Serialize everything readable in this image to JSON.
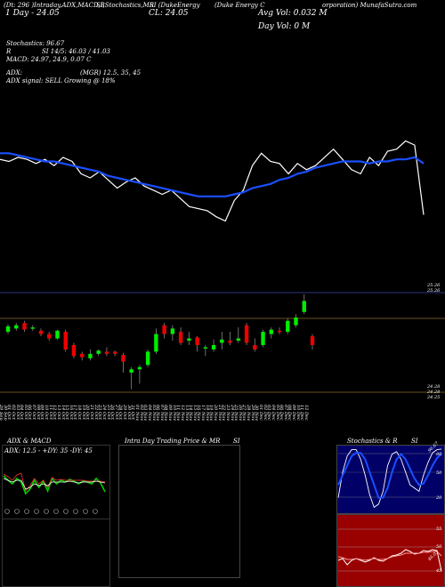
{
  "header": {
    "code": "(Dt: 296 )",
    "line1": "1 Day - 24.05",
    "segs": [
      "Intraday,ADX,MACD,B",
      "SI,Stochastics,MR",
      "SI (DukeEnergy",
      "(Duke   Energy   C",
      "orporation) MunafaSutra.com"
    ],
    "cl": "CL: 24.05",
    "avg_vol": "Avg Vol: 0.032  M",
    "day_vol": "Day Vol: 0   M"
  },
  "indicators": {
    "stochastics": "Stochastics: 96.67",
    "r": "R",
    "si": "SI 14/5: 46.03 / 41.03",
    "macd": "MACD: 24.97, 24.9, 0.07 C",
    "adx": "ADX:",
    "mgr": "(MGR) 12.5,  35,  45",
    "signal": "ADX  signal: SELL Growing @ 18%"
  },
  "chart_data": [
    {
      "type": "line",
      "name": "price-ma",
      "series": [
        {
          "color": "#ffffff",
          "values": [
            24.55,
            24.54,
            24.56,
            24.55,
            24.53,
            24.55,
            24.52,
            24.56,
            24.54,
            24.48,
            24.46,
            24.49,
            24.45,
            24.41,
            24.44,
            24.46,
            24.42,
            24.4,
            24.38,
            24.4,
            24.36,
            24.32,
            24.31,
            24.3,
            24.27,
            24.25,
            24.35,
            24.4,
            24.52,
            24.58,
            24.54,
            24.53,
            24.48,
            24.53,
            24.5,
            24.52,
            24.56,
            24.6,
            24.55,
            24.5,
            24.48,
            24.56,
            24.52,
            24.59,
            24.6,
            24.64,
            24.62,
            24.28
          ]
        },
        {
          "color": "#1a4fff",
          "values": [
            24.58,
            24.58,
            24.57,
            24.56,
            24.55,
            24.54,
            24.54,
            24.53,
            24.52,
            24.51,
            24.5,
            24.49,
            24.47,
            24.46,
            24.45,
            24.44,
            24.43,
            24.42,
            24.41,
            24.4,
            24.39,
            24.38,
            24.37,
            24.37,
            24.37,
            24.37,
            24.38,
            24.39,
            24.41,
            24.42,
            24.43,
            24.45,
            24.46,
            24.48,
            24.49,
            24.51,
            24.52,
            24.53,
            24.54,
            24.54,
            24.54,
            24.53,
            24.54,
            24.54,
            24.55,
            24.55,
            24.56,
            24.53
          ]
        }
      ]
    },
    {
      "type": "candlestick",
      "name": "price-candles",
      "price_labels": [
        "25.26",
        "25.26",
        "24.28",
        "24.28",
        "24.25"
      ],
      "dates": [
        "29 Sep",
        "30 Sep",
        "01 Oct",
        "02 Oct",
        "03 Oct",
        "04 Oct",
        "05 Oct",
        "06 Oct",
        "07 Oct",
        "08 Oct",
        "09 Oct",
        "10 Oct",
        "11 Oct",
        "12 Oct",
        "13 Oct",
        "14 Oct",
        "15 Oct",
        "16 Oct",
        "17 Oct",
        "18 Oct",
        "19 Oct",
        "20 Oct",
        "21 Oct",
        "22 Oct",
        "23 Oct",
        "24 Oct",
        "25 Oct",
        "26 Oct",
        "27 Oct",
        "28 Oct",
        "29 Oct",
        "30 Oct",
        "31 Oct",
        "01 Nov",
        "02 Nov",
        "03 Nov",
        "04 Nov",
        "05 Nov",
        "06 Nov",
        "07 Nov",
        "08 Nov",
        "09 Nov",
        "10 Nov",
        "11 Nov",
        "12 Nov",
        "13 Nov",
        "14 Nov",
        "15 Nov",
        "16 Nov",
        "17 Nov",
        "18 Nov",
        "19 Nov",
        "20 Nov",
        "21 Nov",
        "22 Nov",
        "23 Nov",
        "24 Nov",
        "25 Nov",
        "26 Nov",
        "27 Nov",
        "28 Nov",
        "29 Nov",
        "30 Nov",
        "01 Dec",
        "02 Dec",
        "03 Dec",
        "04 Dec",
        "05 Dec",
        "06 Dec",
        "07 Dec",
        "08 Dec",
        "09 Dec",
        "10 Dec",
        "11 Dec",
        "12 Dec"
      ],
      "candles": [
        {
          "o": 24.92,
          "c": 24.97,
          "h": 24.99,
          "l": 24.9
        },
        {
          "o": 24.95,
          "c": 24.98,
          "h": 25.0,
          "l": 24.93
        },
        {
          "o": 25.0,
          "c": 24.94,
          "h": 25.02,
          "l": 24.92
        },
        {
          "o": 24.95,
          "c": 24.96,
          "h": 24.98,
          "l": 24.93
        },
        {
          "o": 24.93,
          "c": 24.9,
          "h": 24.95,
          "l": 24.88
        },
        {
          "o": 24.9,
          "c": 24.86,
          "h": 24.92,
          "l": 24.84
        },
        {
          "o": 24.86,
          "c": 24.93,
          "h": 24.94,
          "l": 24.85
        },
        {
          "o": 24.92,
          "c": 24.76,
          "h": 24.94,
          "l": 24.74
        },
        {
          "o": 24.8,
          "c": 24.7,
          "h": 24.82,
          "l": 24.68
        },
        {
          "o": 24.72,
          "c": 24.69,
          "h": 24.74,
          "l": 24.66
        },
        {
          "o": 24.68,
          "c": 24.72,
          "h": 24.76,
          "l": 24.66
        },
        {
          "o": 24.72,
          "c": 24.75,
          "h": 24.76,
          "l": 24.7
        },
        {
          "o": 24.74,
          "c": 24.72,
          "h": 24.78,
          "l": 24.7
        },
        {
          "o": 24.74,
          "c": 24.72,
          "h": 24.75,
          "l": 24.7
        },
        {
          "o": 24.71,
          "c": 24.65,
          "h": 24.73,
          "l": 24.55
        },
        {
          "o": 24.55,
          "c": 24.58,
          "h": 24.6,
          "l": 24.4
        },
        {
          "o": 24.58,
          "c": 24.6,
          "h": 24.62,
          "l": 24.45
        },
        {
          "o": 24.62,
          "c": 24.74,
          "h": 24.76,
          "l": 24.6
        },
        {
          "o": 24.74,
          "c": 24.9,
          "h": 24.95,
          "l": 24.72
        },
        {
          "o": 24.98,
          "c": 24.9,
          "h": 25.0,
          "l": 24.86
        },
        {
          "o": 24.9,
          "c": 24.95,
          "h": 24.98,
          "l": 24.84
        },
        {
          "o": 24.92,
          "c": 24.82,
          "h": 24.96,
          "l": 24.8
        },
        {
          "o": 24.84,
          "c": 24.86,
          "h": 24.92,
          "l": 24.8
        },
        {
          "o": 24.87,
          "c": 24.8,
          "h": 24.88,
          "l": 24.74
        },
        {
          "o": 24.77,
          "c": 24.78,
          "h": 24.8,
          "l": 24.7
        },
        {
          "o": 24.76,
          "c": 24.8,
          "h": 24.85,
          "l": 24.74
        },
        {
          "o": 24.82,
          "c": 24.85,
          "h": 24.92,
          "l": 24.76
        },
        {
          "o": 24.84,
          "c": 24.82,
          "h": 24.92,
          "l": 24.8
        },
        {
          "o": 24.84,
          "c": 24.86,
          "h": 24.96,
          "l": 24.82
        },
        {
          "o": 24.98,
          "c": 24.82,
          "h": 25.0,
          "l": 24.8
        },
        {
          "o": 24.8,
          "c": 24.76,
          "h": 24.86,
          "l": 24.74
        },
        {
          "o": 24.8,
          "c": 24.92,
          "h": 24.94,
          "l": 24.78
        },
        {
          "o": 24.9,
          "c": 24.94,
          "h": 24.96,
          "l": 24.86
        },
        {
          "o": 24.93,
          "c": 24.92,
          "h": 24.96,
          "l": 24.9
        },
        {
          "o": 24.92,
          "c": 25.02,
          "h": 25.04,
          "l": 24.9
        },
        {
          "o": 24.98,
          "c": 25.05,
          "h": 25.08,
          "l": 24.96
        },
        {
          "o": 25.1,
          "c": 25.2,
          "h": 25.26,
          "l": 25.08
        },
        {
          "o": 24.88,
          "c": 24.8,
          "h": 24.9,
          "l": 24.76
        }
      ]
    },
    {
      "type": "line",
      "name": "adx-macd",
      "series": [
        {
          "color": "#00cc00",
          "values": [
            5.5,
            5.0,
            4.6,
            5.2,
            4.8,
            3.5,
            4.0,
            5.0,
            4.2,
            4.9,
            3.8,
            5.2,
            4.6,
            5.0,
            4.8,
            5.1,
            4.9,
            4.6,
            4.9,
            4.8,
            4.6,
            5.2,
            4.7,
            3.7
          ]
        },
        {
          "color": "#ff3333",
          "values": [
            5.7,
            5.4,
            5.0,
            5.6,
            5.8,
            3.8,
            4.4,
            5.2,
            4.6,
            5.0,
            4.2,
            5.3,
            5.0,
            5.1,
            5.0,
            5.0,
            5.0,
            5.0,
            5.0,
            4.9,
            4.9,
            4.9,
            4.9,
            4.8
          ]
        },
        {
          "color": "#ffffff",
          "values": [
            5.2,
            5.0,
            4.8,
            5.0,
            5.0,
            4.0,
            4.2,
            4.6,
            4.4,
            4.6,
            4.4,
            4.8,
            4.8,
            4.8,
            4.8,
            4.9,
            4.8,
            4.7,
            4.8,
            4.8,
            4.8,
            4.9,
            4.8,
            4.7
          ]
        }
      ]
    },
    {
      "type": "line",
      "name": "stochastics",
      "ticks": [
        "80",
        "50",
        "20"
      ],
      "series": [
        {
          "color": "#ffffff",
          "values": [
            20,
            60,
            85,
            95,
            95,
            80,
            55,
            25,
            5,
            10,
            30,
            70,
            88,
            92,
            80,
            60,
            40,
            35,
            30,
            55,
            75,
            90,
            95,
            96
          ]
        },
        {
          "color": "#1a4fff",
          "values": [
            40,
            55,
            70,
            85,
            90,
            90,
            80,
            60,
            40,
            20,
            20,
            35,
            60,
            80,
            88,
            80,
            65,
            50,
            40,
            42,
            55,
            70,
            82,
            88
          ]
        }
      ]
    },
    {
      "type": "line",
      "name": "mrsi",
      "ticks": [
        "55",
        "50",
        "45"
      ],
      "series": [
        {
          "color": "#ffffff",
          "values": [
            48,
            48.2,
            47.5,
            48,
            48.2,
            48,
            47.8,
            48,
            48.3,
            48,
            47.9,
            48.2,
            48.5,
            48.6,
            48.8,
            49.2,
            49,
            48.7,
            48.8,
            49.1,
            49,
            49.2,
            49.1,
            46.8
          ]
        },
        {
          "color": "#ff9999",
          "values": [
            48.4,
            48.3,
            48.1,
            48.1,
            48.2,
            48.1,
            48.0,
            48.1,
            48.2,
            48.1,
            48.1,
            48.2,
            48.4,
            48.5,
            48.6,
            48.8,
            48.8,
            48.8,
            48.8,
            48.9,
            48.9,
            49.0,
            49.0,
            48.5
          ]
        }
      ]
    }
  ],
  "panels": {
    "adx_title": "ADX  & MACD",
    "adx_value": "ADX: 12.5 - +DY: 35 -DY: 45",
    "intraday_title": "Intra  Day Trading Price  & MR",
    "intraday_si": "SI",
    "stoch_title": "Stochastics & R",
    "stoch_si": "SI",
    "stoch_corner": "96.67",
    "mrsi_corner": "46.03"
  }
}
